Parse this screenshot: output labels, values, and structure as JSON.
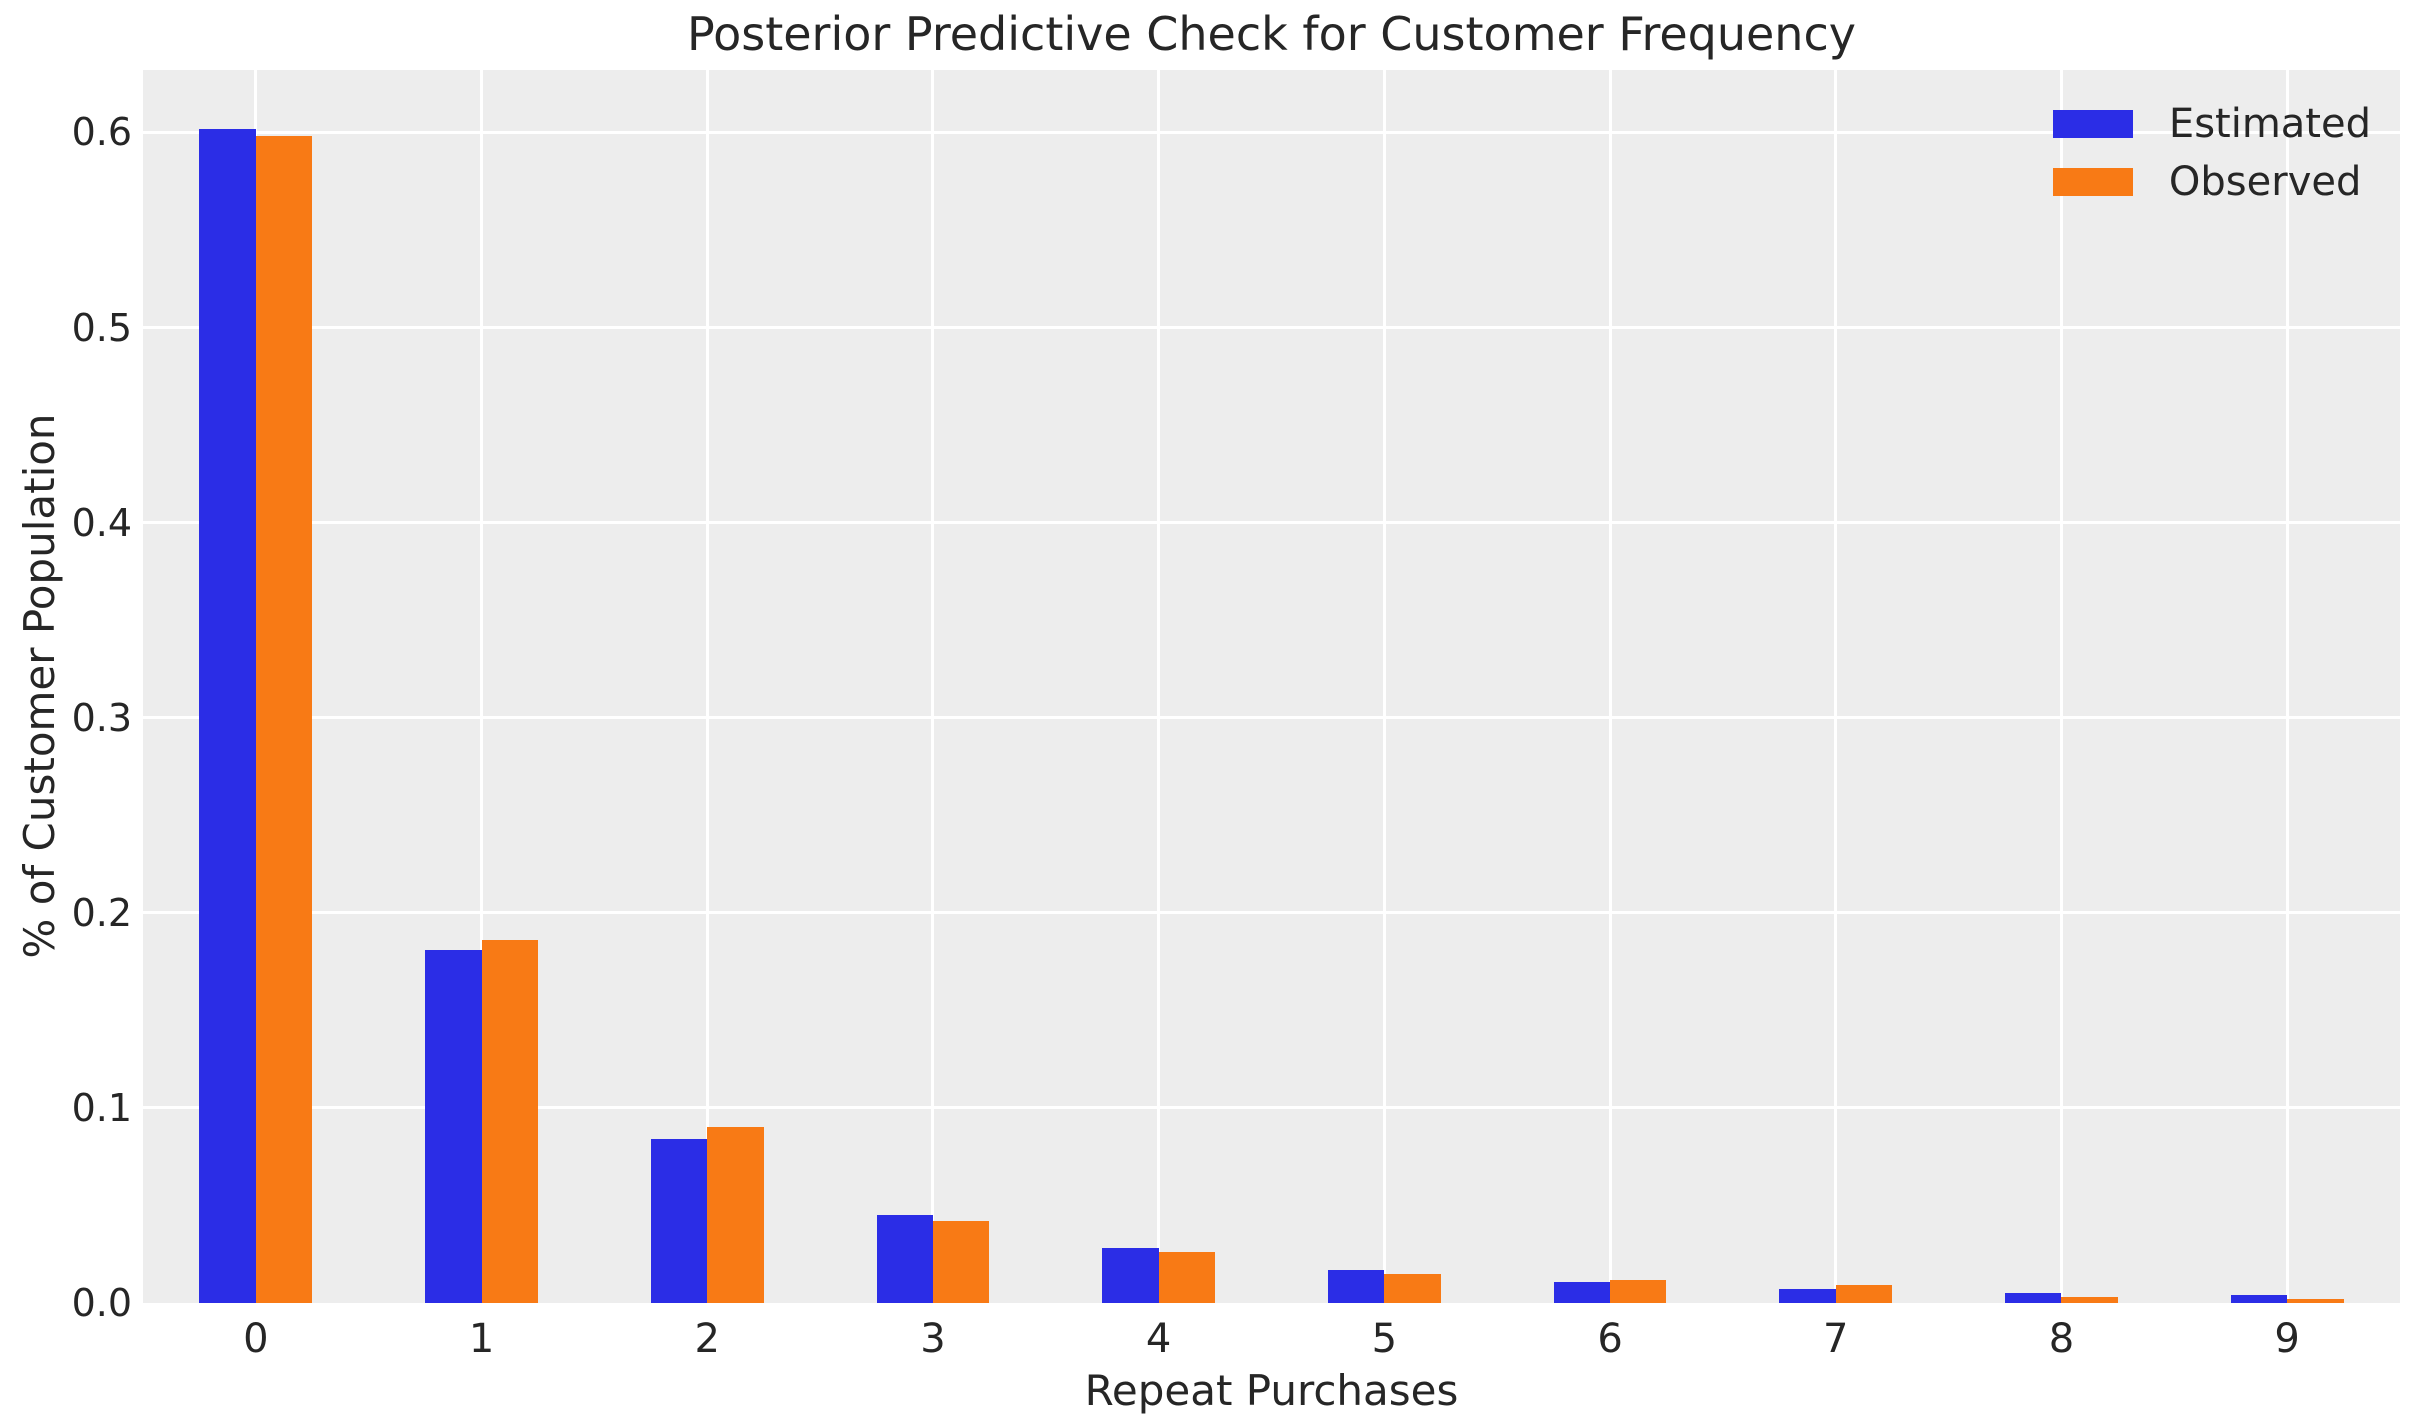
{
  "chart_data": {
    "type": "bar",
    "title": "Posterior Predictive Check for Customer Frequency",
    "xlabel": "Repeat Purchases",
    "ylabel": "% of Customer Population",
    "categories": [
      "0",
      "1",
      "2",
      "3",
      "4",
      "5",
      "6",
      "7",
      "8",
      "9"
    ],
    "series": [
      {
        "name": "Estimated",
        "color": "#2b2de6",
        "values": [
          0.602,
          0.181,
          0.084,
          0.045,
          0.028,
          0.017,
          0.011,
          0.007,
          0.005,
          0.004
        ]
      },
      {
        "name": "Observed",
        "color": "#f87a15",
        "values": [
          0.598,
          0.186,
          0.09,
          0.042,
          0.026,
          0.015,
          0.012,
          0.009,
          0.003,
          0.002
        ]
      }
    ],
    "ylim": [
      0,
      0.632
    ],
    "xlim": [
      -0.5,
      9.5
    ],
    "yticks": [
      "0.0",
      "0.1",
      "0.2",
      "0.3",
      "0.4",
      "0.5",
      "0.6"
    ],
    "grid": "on",
    "legend_position": "upper right",
    "bar_width_fraction": 0.25,
    "plot_bg_color": "#ededed",
    "grid_color": "#ffffff",
    "text_color": "#262626",
    "figure_bg_color": "#ffffff"
  }
}
